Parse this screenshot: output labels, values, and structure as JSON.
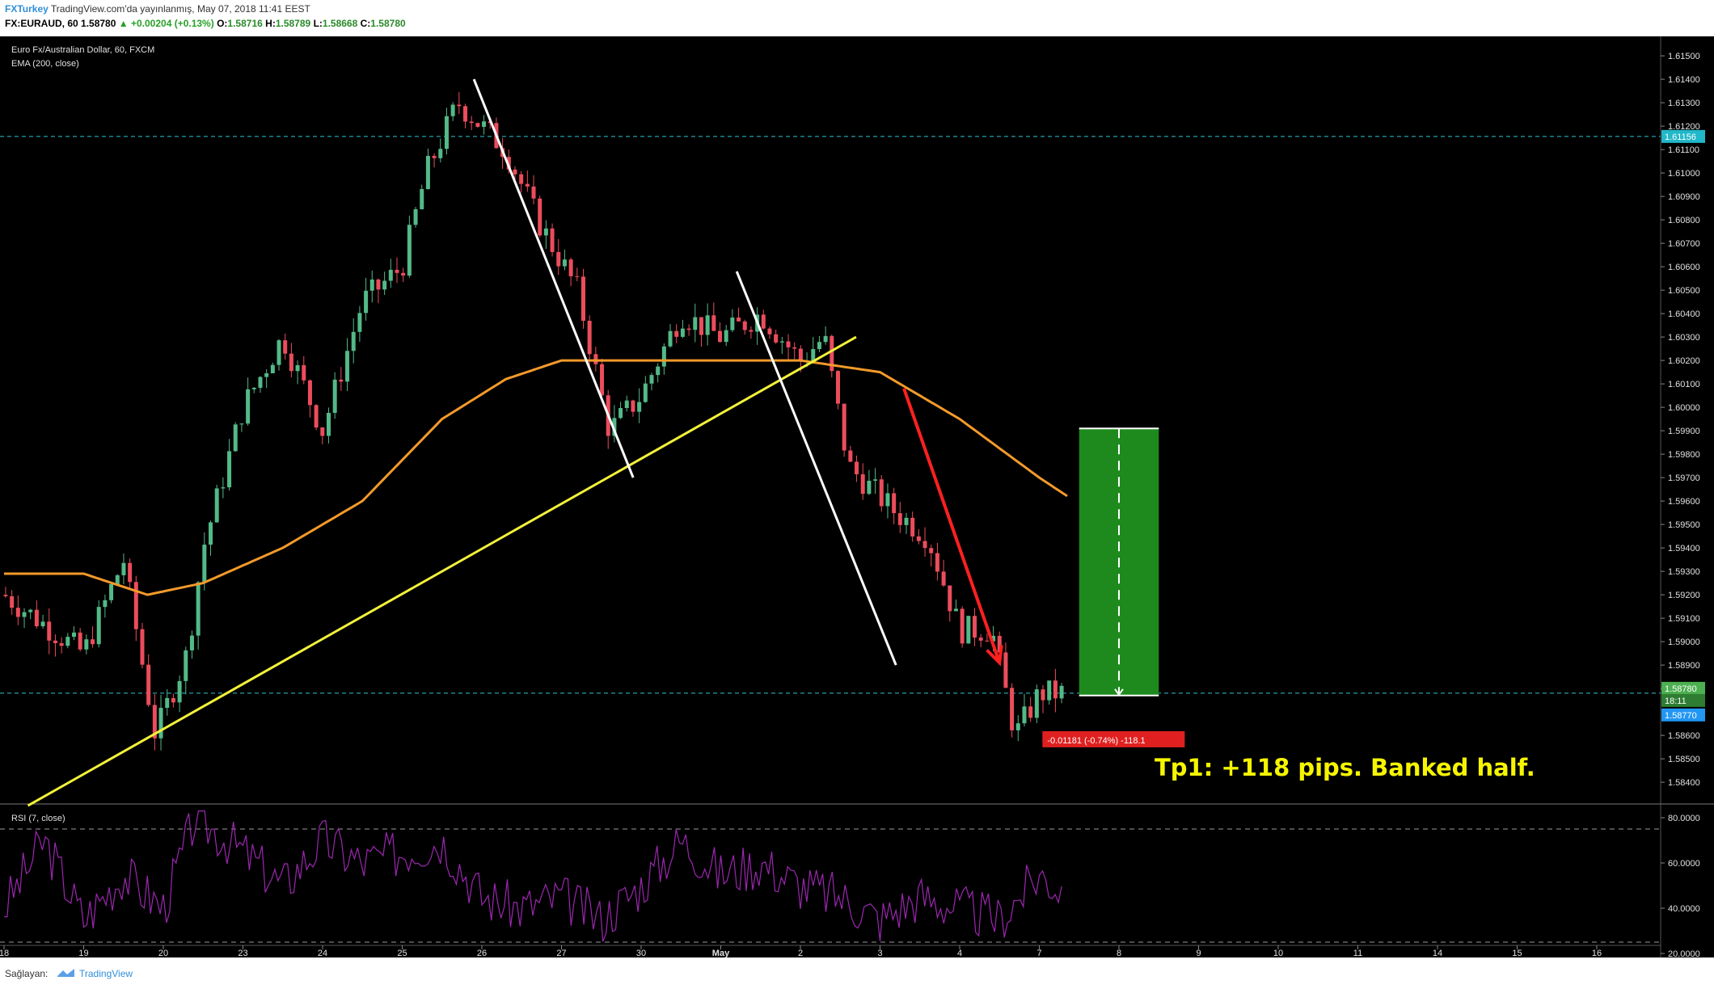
{
  "header": {
    "publisher": "FXTurkey",
    "published_text": "TradingView.com'da yayınlanmış, May 07, 2018 11:41 EEST",
    "symbol_interval": "FX:EURAUD, 60",
    "last": "1.58780",
    "change": "▲ +0.00204 (+0.13%)",
    "o_label": "O:",
    "o": "1.58716",
    "h_label": "H:",
    "h": "1.58789",
    "l_label": "L:",
    "l": "1.58668",
    "c_label": "C:",
    "c": "1.58780"
  },
  "panel": {
    "title": "Euro Fx/Australian Dollar, 60, FXCM",
    "indicator": "EMA (200, close)",
    "rsi_label": "RSI (7, close)",
    "annotation": "Tp1: +118 pips. Banked half.",
    "position_label": "-0.01181 (-0.74%) -118.1",
    "price_tags": {
      "level_high": "1.61156",
      "current": "1.58780",
      "countdown": "18:11",
      "entry": "1.58770"
    }
  },
  "footer": {
    "provided_by": "Sağlayan:",
    "brand": "TradingView"
  },
  "colors": {
    "background": "#000000",
    "candle_up": "#53b987",
    "candle_down": "#eb4d5c",
    "ema": "#f39a2a",
    "trendline": "#f2f23a",
    "arrow": "#ff2020",
    "profit_box": "#1e8a1e",
    "rsi": "#9c27b0",
    "dashed_level": "#2ec5d3"
  },
  "chart_data": [
    {
      "type": "candlestick",
      "title": "Euro Fx/Australian Dollar, 60, FXCM",
      "x_tick_labels": [
        "18",
        "19",
        "20",
        "23",
        "24",
        "25",
        "26",
        "27",
        "30",
        "May",
        "2",
        "3",
        "4",
        "7",
        "8",
        "9",
        "10",
        "11",
        "14",
        "15",
        "16"
      ],
      "y_tick_labels": [
        "1.61500",
        "1.61400",
        "1.61300",
        "1.61200",
        "1.61100",
        "1.61000",
        "1.60900",
        "1.60800",
        "1.60700",
        "1.60600",
        "1.60500",
        "1.60400",
        "1.60300",
        "1.60200",
        "1.60100",
        "1.60000",
        "1.59900",
        "1.59800",
        "1.59700",
        "1.59600",
        "1.59500",
        "1.59400",
        "1.59300",
        "1.59200",
        "1.59100",
        "1.59000",
        "1.58900",
        "1.58800",
        "1.58600",
        "1.58500",
        "1.58400",
        "1.58300"
      ],
      "ylim": [
        1.5829,
        1.6155
      ],
      "price_path": [
        {
          "x": 0.0,
          "y": 1.592
        },
        {
          "x": 1.0,
          "y": 1.5895
        },
        {
          "x": 1.5,
          "y": 1.5935
        },
        {
          "x": 1.9,
          "y": 1.586
        },
        {
          "x": 2.3,
          "y": 1.5895
        },
        {
          "x": 2.5,
          "y": 1.594
        },
        {
          "x": 3.0,
          "y": 1.6
        },
        {
          "x": 3.5,
          "y": 1.603
        },
        {
          "x": 4.0,
          "y": 1.599
        },
        {
          "x": 4.5,
          "y": 1.6045
        },
        {
          "x": 5.0,
          "y": 1.606
        },
        {
          "x": 5.3,
          "y": 1.61
        },
        {
          "x": 5.7,
          "y": 1.613
        },
        {
          "x": 6.3,
          "y": 1.611
        },
        {
          "x": 6.7,
          "y": 1.608
        },
        {
          "x": 7.2,
          "y": 1.605
        },
        {
          "x": 7.6,
          "y": 1.599
        },
        {
          "x": 8.0,
          "y": 1.6005
        },
        {
          "x": 8.5,
          "y": 1.604
        },
        {
          "x": 9.0,
          "y": 1.603
        },
        {
          "x": 9.5,
          "y": 1.604
        },
        {
          "x": 10.0,
          "y": 1.602
        },
        {
          "x": 10.3,
          "y": 1.603
        },
        {
          "x": 10.6,
          "y": 1.5975
        },
        {
          "x": 10.9,
          "y": 1.5965
        },
        {
          "x": 11.2,
          "y": 1.5955
        },
        {
          "x": 11.6,
          "y": 1.5945
        },
        {
          "x": 12.0,
          "y": 1.5905
        },
        {
          "x": 12.4,
          "y": 1.5905
        },
        {
          "x": 12.7,
          "y": 1.586
        },
        {
          "x": 13.0,
          "y": 1.5878
        },
        {
          "x": 13.3,
          "y": 1.5878
        }
      ],
      "ema_200": [
        {
          "x": 0.0,
          "y": 1.5929
        },
        {
          "x": 1.0,
          "y": 1.5929
        },
        {
          "x": 1.8,
          "y": 1.592
        },
        {
          "x": 2.5,
          "y": 1.5925
        },
        {
          "x": 3.5,
          "y": 1.594
        },
        {
          "x": 4.5,
          "y": 1.596
        },
        {
          "x": 5.5,
          "y": 1.5995
        },
        {
          "x": 6.3,
          "y": 1.6012
        },
        {
          "x": 7.0,
          "y": 1.602
        },
        {
          "x": 8.0,
          "y": 1.602
        },
        {
          "x": 9.0,
          "y": 1.602
        },
        {
          "x": 10.0,
          "y": 1.602
        },
        {
          "x": 11.0,
          "y": 1.6015
        },
        {
          "x": 12.0,
          "y": 1.5995
        },
        {
          "x": 13.0,
          "y": 1.597
        },
        {
          "x": 13.4,
          "y": 1.5961
        }
      ],
      "drawings": {
        "trendline": {
          "from": {
            "x": 0.3,
            "y": 1.583
          },
          "to": {
            "x": 10.7,
            "y": 1.603
          }
        },
        "white_line_1": {
          "from": {
            "x": 5.9,
            "y": 1.614
          },
          "to": {
            "x": 7.9,
            "y": 1.597
          }
        },
        "white_line_2": {
          "from": {
            "x": 9.2,
            "y": 1.6058
          },
          "to": {
            "x": 11.2,
            "y": 1.589
          }
        },
        "red_arrow": {
          "from": {
            "x": 11.3,
            "y": 1.6008
          },
          "to": {
            "x": 12.5,
            "y": 1.5891
          }
        },
        "target_box": {
          "x0": 13.5,
          "x1": 14.5,
          "y_entry": 1.5877,
          "y_target": 1.5991
        },
        "levels": [
          1.61156,
          1.5878
        ]
      }
    },
    {
      "type": "line",
      "title": "RSI (7, close)",
      "y_tick_labels": [
        "80.0000",
        "60.0000",
        "40.0000",
        "20.0000"
      ],
      "ylim": [
        15,
        85
      ],
      "levels": [
        75,
        25
      ],
      "values": [
        {
          "x": 0.0,
          "y": 40
        },
        {
          "x": 0.5,
          "y": 70
        },
        {
          "x": 1.0,
          "y": 35
        },
        {
          "x": 1.5,
          "y": 55
        },
        {
          "x": 2.0,
          "y": 40
        },
        {
          "x": 2.4,
          "y": 80
        },
        {
          "x": 3.0,
          "y": 65
        },
        {
          "x": 3.5,
          "y": 50
        },
        {
          "x": 4.0,
          "y": 70
        },
        {
          "x": 4.5,
          "y": 60
        },
        {
          "x": 5.0,
          "y": 65
        },
        {
          "x": 5.5,
          "y": 70
        },
        {
          "x": 6.0,
          "y": 45
        },
        {
          "x": 6.5,
          "y": 40
        },
        {
          "x": 7.0,
          "y": 45
        },
        {
          "x": 7.5,
          "y": 35
        },
        {
          "x": 8.0,
          "y": 50
        },
        {
          "x": 8.5,
          "y": 70
        },
        {
          "x": 9.0,
          "y": 55
        },
        {
          "x": 9.5,
          "y": 60
        },
        {
          "x": 10.0,
          "y": 50
        },
        {
          "x": 10.5,
          "y": 45
        },
        {
          "x": 11.0,
          "y": 35
        },
        {
          "x": 11.5,
          "y": 45
        },
        {
          "x": 12.0,
          "y": 40
        },
        {
          "x": 12.5,
          "y": 35
        },
        {
          "x": 13.0,
          "y": 55
        },
        {
          "x": 13.3,
          "y": 48
        }
      ]
    }
  ]
}
